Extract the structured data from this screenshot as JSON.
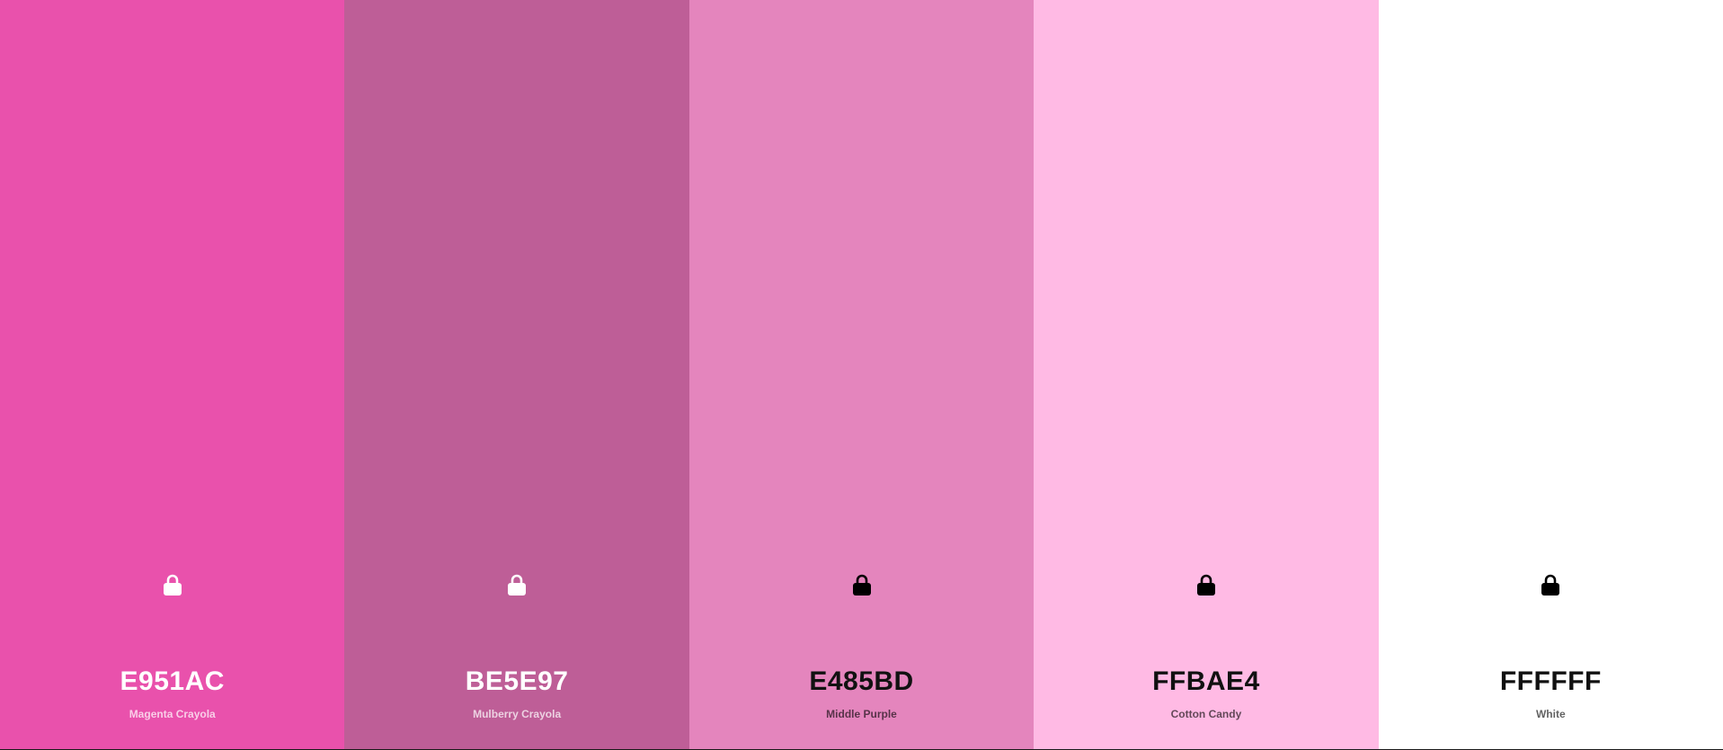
{
  "palette": {
    "swatches": [
      {
        "hex": "E951AC",
        "name": "Magenta Crayola",
        "color": "#E951AC",
        "lock_icon": "lock-icon",
        "text_tone": "light"
      },
      {
        "hex": "BE5E97",
        "name": "Mulberry Crayola",
        "color": "#BE5E97",
        "lock_icon": "lock-icon",
        "text_tone": "light"
      },
      {
        "hex": "E485BD",
        "name": "Middle Purple",
        "color": "#E485BD",
        "lock_icon": "lock-icon",
        "text_tone": "dark"
      },
      {
        "hex": "FFBAE4",
        "name": "Cotton Candy",
        "color": "#FFBAE4",
        "lock_icon": "lock-icon",
        "text_tone": "dark"
      },
      {
        "hex": "FFFFFF",
        "name": "White",
        "color": "#FFFFFF",
        "lock_icon": "lock-icon",
        "text_tone": "dark"
      }
    ]
  }
}
